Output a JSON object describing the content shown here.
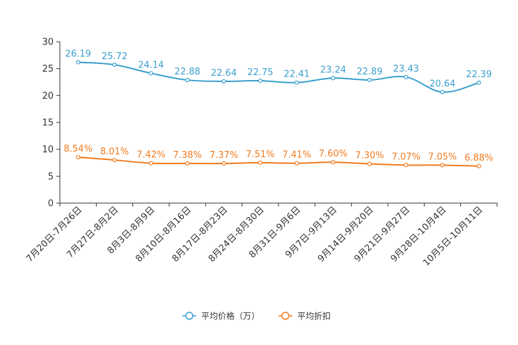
{
  "chart_data": {
    "type": "line",
    "categories": [
      "7月20日-7月26日",
      "7月27日-8月2日",
      "8月3日-8月9日",
      "8月10日-8月16日",
      "8月17日-8月23日",
      "8月24日-8月30日",
      "8月31日-9月6日",
      "9月7日-9月13日",
      "9月14日-9月20日",
      "9月21日-9月27日",
      "9月28日-10月4日",
      "10月5日-10月11日"
    ],
    "series": [
      {
        "name": "平均价格（万）",
        "color": "#3a9fcd",
        "values": [
          26.19,
          25.72,
          24.14,
          22.88,
          22.64,
          22.75,
          22.41,
          23.24,
          22.89,
          23.43,
          20.64,
          22.39
        ],
        "labels": [
          "26.19",
          "25.72",
          "24.14",
          "22.88",
          "22.64",
          "22.75",
          "22.41",
          "23.24",
          "22.89",
          "23.43",
          "20.64",
          "22.39"
        ]
      },
      {
        "name": "平均折扣",
        "color": "#f07b1f",
        "values": [
          8.54,
          8.01,
          7.42,
          7.38,
          7.37,
          7.51,
          7.41,
          7.6,
          7.3,
          7.07,
          7.05,
          6.88
        ],
        "labels": [
          "8.54%",
          "8.01%",
          "7.42%",
          "7.38%",
          "7.37%",
          "7.51%",
          "7.41%",
          "7.60%",
          "7.30%",
          "7.07%",
          "7.05%",
          "6.88%"
        ]
      }
    ],
    "y_ticks": [
      "0",
      "5",
      "10",
      "15",
      "20",
      "25",
      "30"
    ],
    "ylim": [
      0,
      30
    ],
    "title": "",
    "xlabel": "",
    "ylabel": "",
    "legend_position": "bottom-center",
    "grid": false
  }
}
